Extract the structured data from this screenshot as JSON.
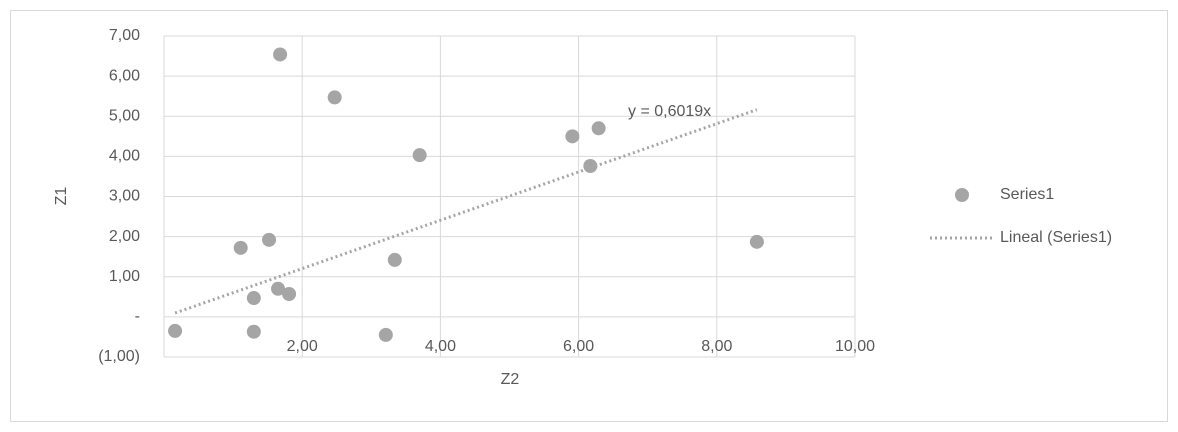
{
  "chart_data": {
    "type": "scatter",
    "x_label": "Z2",
    "y_label": "Z1",
    "series": [
      {
        "name": "Series1",
        "color": "#a5a5a5",
        "x": [
          0.16,
          1.11,
          1.3,
          1.3,
          1.52,
          1.65,
          1.68,
          1.81,
          2.47,
          3.21,
          3.34,
          3.7,
          5.91,
          6.17,
          6.29,
          8.58
        ],
        "values": [
          -0.35,
          1.72,
          0.47,
          -0.37,
          1.92,
          0.7,
          6.54,
          0.57,
          5.47,
          -0.45,
          1.42,
          4.03,
          4.5,
          3.76,
          4.7,
          1.87
        ]
      }
    ],
    "trendline": {
      "name": "Lineal (Series1)",
      "equation": "y = 0,6019x",
      "slope": 0.6019,
      "color": "#a5a5a5"
    },
    "xlim": [
      0,
      10
    ],
    "xticks": [
      {
        "value": 2,
        "label": "2,00"
      },
      {
        "value": 4,
        "label": "4,00"
      },
      {
        "value": 6,
        "label": "6,00"
      },
      {
        "value": 8,
        "label": "8,00"
      },
      {
        "value": 10,
        "label": "10,00"
      }
    ],
    "ylim": [
      -1,
      7
    ],
    "yticks": [
      {
        "value": -1,
        "label": "(1,00)"
      },
      {
        "value": 0,
        "label": "-"
      },
      {
        "value": 1,
        "label": "1,00"
      },
      {
        "value": 2,
        "label": "2,00"
      },
      {
        "value": 3,
        "label": "3,00"
      },
      {
        "value": 4,
        "label": "4,00"
      },
      {
        "value": 5,
        "label": "5,00"
      },
      {
        "value": 6,
        "label": "6,00"
      },
      {
        "value": 7,
        "label": "7,00"
      }
    ],
    "grid": true
  }
}
